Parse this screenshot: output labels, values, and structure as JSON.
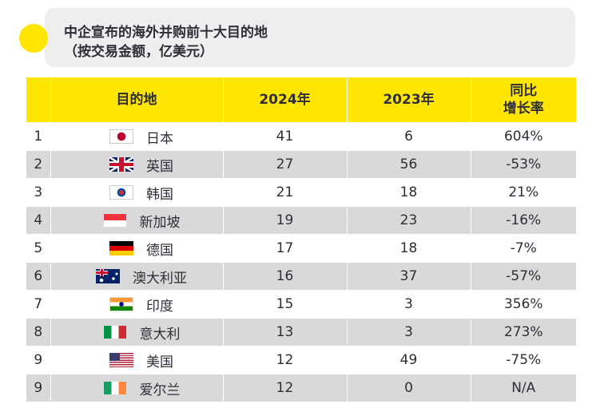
{
  "title": {
    "line1": "中企宣布的海外并购前十大目的地",
    "line2": "（按交易金额，亿美元）"
  },
  "colors": {
    "accent": "#ffe600",
    "positive": "#2db757",
    "negative": "#ea011d",
    "alt_row": "#d9d9d9",
    "text": "#2e2e38"
  },
  "chart_data": {
    "type": "table",
    "title": "中企宣布的海外并购前十大目的地",
    "subtitle": "（按交易金额，亿美元）",
    "columns": [
      "",
      "目的地",
      "2024年",
      "2023年",
      "同比增长率"
    ],
    "header": {
      "rank": "",
      "destination": "目的地",
      "y2024": "2024年",
      "y2023": "2023年",
      "growth_line1": "同比",
      "growth_line2": "增长率"
    },
    "rows": [
      {
        "rank": "1",
        "flag": "japan-flag-icon",
        "name": "日本",
        "y2024": "41",
        "y2023": "6",
        "growth": "604%",
        "trend": "pos"
      },
      {
        "rank": "2",
        "flag": "uk-flag-icon",
        "name": "英国",
        "y2024": "27",
        "y2023": "56",
        "growth": "-53%",
        "trend": "neg"
      },
      {
        "rank": "3",
        "flag": "korea-flag-icon",
        "name": "韩国",
        "y2024": "21",
        "y2023": "18",
        "growth": "21%",
        "trend": "pos"
      },
      {
        "rank": "4",
        "flag": "singapore-flag-icon",
        "name": "新加坡",
        "y2024": "19",
        "y2023": "23",
        "growth": "-16%",
        "trend": "neg"
      },
      {
        "rank": "5",
        "flag": "germany-flag-icon",
        "name": "德国",
        "y2024": "17",
        "y2023": "18",
        "growth": "-7%",
        "trend": "neg"
      },
      {
        "rank": "6",
        "flag": "australia-flag-icon",
        "name": "澳大利亚",
        "y2024": "16",
        "y2023": "37",
        "growth": "-57%",
        "trend": "neg"
      },
      {
        "rank": "7",
        "flag": "india-flag-icon",
        "name": "印度",
        "y2024": "15",
        "y2023": "3",
        "growth": "356%",
        "trend": "pos"
      },
      {
        "rank": "8",
        "flag": "italy-flag-icon",
        "name": "意大利",
        "y2024": "13",
        "y2023": "3",
        "growth": "273%",
        "trend": "pos"
      },
      {
        "rank": "9",
        "flag": "usa-flag-icon",
        "name": "美国",
        "y2024": "12",
        "y2023": "49",
        "growth": "-75%",
        "trend": "neg"
      },
      {
        "rank": "9",
        "flag": "ireland-flag-icon",
        "name": "爱尔兰",
        "y2024": "12",
        "y2023": "0",
        "growth": "N/A",
        "trend": "na"
      }
    ]
  }
}
